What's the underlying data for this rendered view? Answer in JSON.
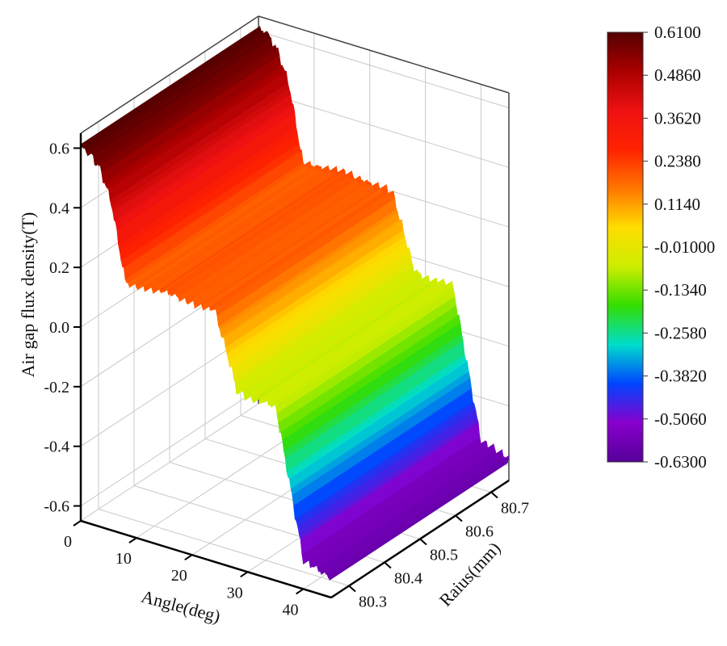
{
  "chart_data": {
    "type": "surface-3d",
    "title": "",
    "zlabel": "Air gap flux density(T)",
    "xlabel": "Angle(deg)",
    "ylabel": "Raius(mm)",
    "x_ticks": [
      "0",
      "10",
      "20",
      "30",
      "40"
    ],
    "y_ticks": [
      "80.3",
      "80.4",
      "80.5",
      "80.6",
      "80.7"
    ],
    "z_ticks": [
      "0.6",
      "0.4",
      "0.2",
      "0.0",
      "-0.2",
      "-0.4",
      "-0.6"
    ],
    "xlim": [
      0,
      45
    ],
    "ylim": [
      80.25,
      80.75
    ],
    "zlim": [
      -0.65,
      0.65
    ],
    "grid": true,
    "colorbar": {
      "labels": [
        "0.6100",
        "0.4860",
        "0.3620",
        "0.2380",
        "0.1140",
        "-0.01000",
        "-0.1340",
        "-0.2580",
        "-0.3820",
        "-0.5060",
        "-0.6300"
      ],
      "colors": [
        "#550000",
        "#aa0000",
        "#ee1111",
        "#ff2200",
        "#ff7700",
        "#ffdd00",
        "#ccee00",
        "#33dd00",
        "#00ddcc",
        "#0044ff",
        "#8800cc",
        "#550099"
      ],
      "range": [
        -0.63,
        0.61
      ]
    },
    "profile": {
      "angle": [
        0,
        1.5,
        3.5,
        5.5,
        8,
        10,
        15,
        20,
        24,
        27,
        28,
        28.5,
        30,
        35,
        40,
        45
      ],
      "flux": [
        0.6,
        0.6,
        0.55,
        0.45,
        0.2,
        0.2,
        0.21,
        0.2,
        0.2,
        0.02,
        -0.05,
        -0.05,
        -0.06,
        -0.06,
        -0.55,
        -0.58
      ]
    }
  }
}
